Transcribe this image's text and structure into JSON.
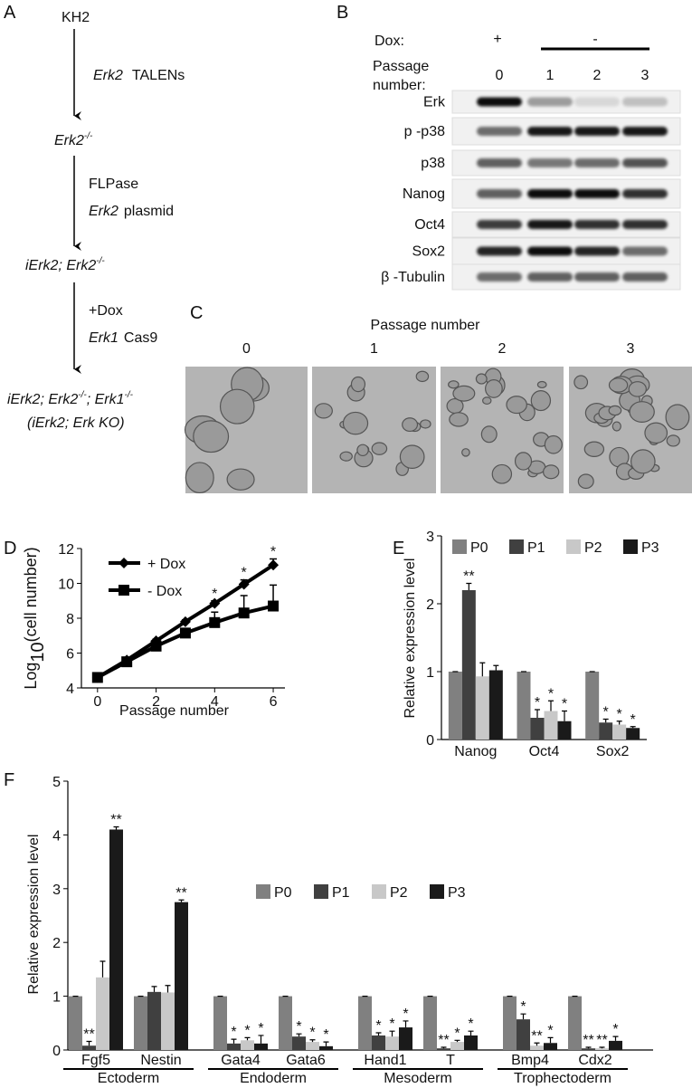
{
  "panel_labels": [
    "A",
    "B",
    "C",
    "D",
    "E",
    "F"
  ],
  "panel_a": {
    "start": "KH2",
    "step1": [
      "Erk2",
      "TALENs"
    ],
    "node1": [
      "Erk2",
      "-/-"
    ],
    "step2": [
      "FLPase",
      "Erk2",
      "plasmid"
    ],
    "node2": [
      "iErk2; Erk2",
      "-/-"
    ],
    "step3": [
      "+Dox",
      "Erk1",
      "Cas9"
    ],
    "node3": [
      "iErk2; Erk2",
      "-/-",
      "; Erk1",
      "-/-"
    ],
    "node3_alias": "(iErk2; Erk KO)"
  },
  "panel_b": {
    "dox_label": "Dox:",
    "dox": [
      "+",
      "-"
    ],
    "passage_label": [
      "Passage",
      "number:"
    ],
    "passages": [
      0,
      1,
      2,
      3
    ],
    "proteins": [
      "Erk",
      "p -p38",
      "p38",
      "Nanog",
      "Oct4",
      "Sox2",
      "β -Tubulin"
    ]
  },
  "panel_c": {
    "title": "Passage number",
    "passages": [
      0,
      1,
      2,
      3
    ]
  },
  "chart_data": [
    {
      "type": "line",
      "xlabel": "Passage number",
      "ylabel_parts": [
        "Log",
        "10",
        "(cell number)"
      ],
      "x": [
        0,
        1,
        2,
        3,
        4,
        5,
        6
      ],
      "xlim": [
        -0.55,
        6.4
      ],
      "xticks": [
        0,
        2,
        4,
        6
      ],
      "ylim": [
        4,
        12
      ],
      "yticks": [
        4,
        6,
        8,
        10,
        12
      ],
      "series": [
        {
          "name": "+ Dox",
          "color": "#000000",
          "marker": "diamond",
          "values": [
            4.6,
            5.6,
            6.7,
            7.8,
            8.85,
            9.95,
            11.05
          ],
          "errors": [
            0.1,
            0.1,
            0.1,
            0.1,
            0.15,
            0.25,
            0.35
          ],
          "annotations": [
            null,
            null,
            null,
            null,
            "*",
            "*",
            "*"
          ]
        },
        {
          "name": "- Dox",
          "color": "#000000",
          "marker": "square",
          "values": [
            4.6,
            5.5,
            6.4,
            7.15,
            7.75,
            8.3,
            8.7
          ],
          "errors": [
            0.1,
            0.1,
            0.1,
            0.2,
            0.6,
            1.0,
            1.2
          ]
        }
      ]
    },
    {
      "type": "bar",
      "ylabel": "Relative expression level",
      "categories": [
        "Nanog",
        "Oct4",
        "Sox2"
      ],
      "ylim": [
        0,
        3
      ],
      "yticks": [
        0,
        1,
        2,
        3
      ],
      "series": [
        {
          "name": "P0",
          "color": "#808080",
          "values": [
            1,
            1,
            1
          ],
          "errors": [
            0,
            0,
            0
          ]
        },
        {
          "name": "P1",
          "color": "#404040",
          "values": [
            2.2,
            0.32,
            0.25
          ],
          "errors": [
            0.1,
            0.12,
            0.05
          ],
          "annotations": [
            "**",
            "*",
            "*"
          ]
        },
        {
          "name": "P2",
          "color": "#c8c8c8",
          "values": [
            0.93,
            0.42,
            0.22
          ],
          "errors": [
            0.2,
            0.15,
            0.05
          ],
          "annotations": [
            null,
            "*",
            "*"
          ]
        },
        {
          "name": "P3",
          "color": "#1a1a1a",
          "values": [
            1.02,
            0.27,
            0.17
          ],
          "errors": [
            0.07,
            0.15,
            0.02
          ],
          "annotations": [
            null,
            "*",
            "*"
          ]
        }
      ]
    },
    {
      "type": "bar",
      "ylabel": "Relative expression level",
      "categories": [
        "Fgf5",
        "Nestin",
        "Gata4",
        "Gata6",
        "Hand1",
        "T",
        "Bmp4",
        "Cdx2"
      ],
      "groups": [
        "Ectoderm",
        "Endoderm",
        "Mesoderm",
        "Trophectoderm"
      ],
      "ylim": [
        0,
        5
      ],
      "yticks": [
        0,
        1,
        2,
        3,
        4,
        5
      ],
      "series": [
        {
          "name": "P0",
          "color": "#808080",
          "values": [
            1,
            1,
            1,
            1,
            1,
            1,
            1,
            1
          ],
          "errors": [
            0,
            0,
            0,
            0,
            0,
            0,
            0,
            0
          ]
        },
        {
          "name": "P1",
          "color": "#404040",
          "values": [
            0.08,
            1.08,
            0.12,
            0.25,
            0.27,
            0.03,
            0.57,
            0.03
          ],
          "errors": [
            0.08,
            0.1,
            0.08,
            0.05,
            0.05,
            0.02,
            0.1,
            0.02
          ],
          "annotations": [
            "**",
            null,
            "*",
            "*",
            "*",
            "**",
            "*",
            "**"
          ]
        },
        {
          "name": "P2",
          "color": "#c8c8c8",
          "values": [
            1.35,
            1.07,
            0.18,
            0.15,
            0.25,
            0.15,
            0.08,
            0.03
          ],
          "errors": [
            0.3,
            0.13,
            0.05,
            0.04,
            0.1,
            0.03,
            0.05,
            0.02
          ],
          "annotations": [
            null,
            null,
            "*",
            "*",
            "*",
            "*",
            "**",
            "**"
          ]
        },
        {
          "name": "P3",
          "color": "#1a1a1a",
          "values": [
            4.1,
            2.75,
            0.12,
            0.07,
            0.42,
            0.27,
            0.13,
            0.17
          ],
          "errors": [
            0.05,
            0.04,
            0.15,
            0.08,
            0.12,
            0.08,
            0.1,
            0.08
          ],
          "annotations": [
            "**",
            "**",
            "*",
            "*",
            "*",
            "*",
            "*",
            "*"
          ]
        }
      ]
    }
  ]
}
